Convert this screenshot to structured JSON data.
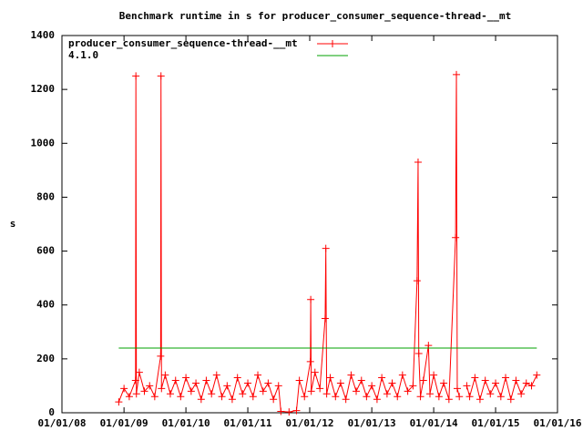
{
  "chart_data": {
    "type": "line",
    "title": "Benchmark runtime in s for producer_consumer_sequence-thread-__mt",
    "y_label": "s",
    "xlim": [
      "2008-01-01",
      "2016-01-01"
    ],
    "xticks": [
      {
        "value": "2008-01-01",
        "label": "01/01/08"
      },
      {
        "value": "2009-01-01",
        "label": "01/01/09"
      },
      {
        "value": "2010-01-01",
        "label": "01/01/10"
      },
      {
        "value": "2011-01-01",
        "label": "01/01/11"
      },
      {
        "value": "2012-01-01",
        "label": "01/01/12"
      },
      {
        "value": "2013-01-01",
        "label": "01/01/13"
      },
      {
        "value": "2014-01-01",
        "label": "01/01/14"
      },
      {
        "value": "2015-01-01",
        "label": "01/01/15"
      },
      {
        "value": "2016-01-01",
        "label": "01/01/16"
      }
    ],
    "ylim": [
      0,
      1400
    ],
    "yticks": [
      0,
      200,
      400,
      600,
      800,
      1000,
      1200,
      1400
    ],
    "legend": "top-left",
    "series": [
      {
        "name": "producer_consumer_sequence-thread-__mt",
        "color": "#ff0000",
        "style": "linespoints",
        "x": [
          "2008-12-01",
          "2009-01-01",
          "2009-02-01",
          "2009-03-10",
          "2009-03-12",
          "2009-03-15",
          "2009-04-01",
          "2009-05-01",
          "2009-06-01",
          "2009-07-01",
          "2009-08-05",
          "2009-08-07",
          "2009-08-10",
          "2009-09-01",
          "2009-10-01",
          "2009-11-01",
          "2009-12-01",
          "2010-01-01",
          "2010-02-01",
          "2010-03-01",
          "2010-04-01",
          "2010-05-01",
          "2010-06-01",
          "2010-07-01",
          "2010-08-01",
          "2010-09-01",
          "2010-10-01",
          "2010-11-01",
          "2010-12-01",
          "2011-01-01",
          "2011-02-01",
          "2011-03-01",
          "2011-04-01",
          "2011-05-01",
          "2011-06-01",
          "2011-07-01",
          "2011-07-15",
          "2011-09-01",
          "2011-10-15",
          "2011-11-01",
          "2011-12-01",
          "2012-01-05",
          "2012-01-07",
          "2012-01-10",
          "2012-02-01",
          "2012-03-01",
          "2012-04-01",
          "2012-04-05",
          "2012-04-10",
          "2012-05-01",
          "2012-06-01",
          "2012-07-01",
          "2012-08-01",
          "2012-09-01",
          "2012-10-01",
          "2012-11-01",
          "2012-12-01",
          "2013-01-01",
          "2013-02-01",
          "2013-03-01",
          "2013-04-01",
          "2013-05-01",
          "2013-06-01",
          "2013-07-01",
          "2013-08-01",
          "2013-09-01",
          "2013-09-25",
          "2013-10-01",
          "2013-10-05",
          "2013-10-15",
          "2013-11-01",
          "2013-12-01",
          "2013-12-10",
          "2014-01-01",
          "2014-02-01",
          "2014-03-01",
          "2014-04-01",
          "2014-05-10",
          "2014-05-15",
          "2014-05-20",
          "2014-06-01",
          "2014-07-01",
          "2014-07-15",
          "2014-08-01",
          "2014-09-01",
          "2014-10-01",
          "2014-11-01",
          "2014-12-01",
          "2015-01-01",
          "2015-02-01",
          "2015-03-01",
          "2015-04-01",
          "2015-05-01",
          "2015-06-01",
          "2015-07-01",
          "2015-08-01",
          "2015-09-01"
        ],
        "values": [
          40,
          90,
          60,
          120,
          1250,
          70,
          150,
          80,
          100,
          60,
          210,
          1250,
          90,
          140,
          70,
          120,
          60,
          130,
          80,
          110,
          50,
          120,
          70,
          140,
          60,
          100,
          50,
          130,
          70,
          110,
          60,
          140,
          80,
          110,
          50,
          100,
          5,
          3,
          8,
          120,
          60,
          190,
          420,
          80,
          150,
          90,
          350,
          610,
          70,
          130,
          60,
          110,
          50,
          140,
          80,
          120,
          60,
          100,
          50,
          130,
          70,
          110,
          60,
          140,
          80,
          100,
          490,
          930,
          220,
          60,
          120,
          250,
          70,
          140,
          60,
          110,
          50,
          650,
          1255,
          90,
          60,
          null,
          100,
          60,
          130,
          50,
          120,
          70,
          110,
          60,
          130,
          50,
          120,
          70,
          110,
          100,
          140
        ]
      },
      {
        "name": "4.1.0",
        "color": "#00a000",
        "style": "lines",
        "x": [
          "2008-12-01",
          "2015-09-01"
        ],
        "values": [
          240,
          240
        ]
      }
    ]
  }
}
